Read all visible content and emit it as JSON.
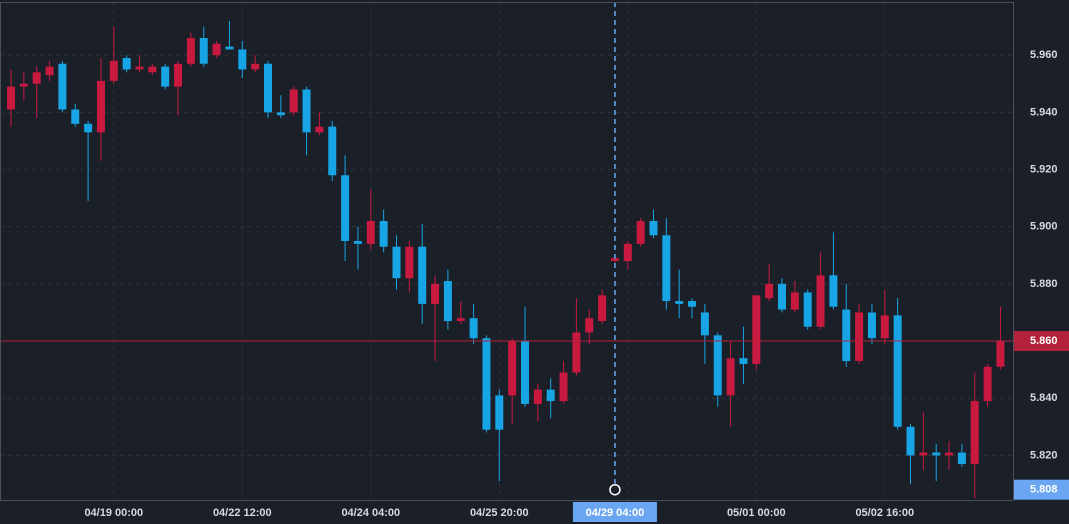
{
  "chart_data": {
    "type": "candlestick",
    "up_color": "#c8193e",
    "down_color": "#17a5e6",
    "categories": [
      null,
      null,
      null,
      null,
      null,
      null,
      null,
      null,
      "04/19 00:00",
      null,
      null,
      null,
      null,
      null,
      null,
      null,
      null,
      null,
      "04/22 12:00",
      null,
      null,
      null,
      null,
      null,
      null,
      null,
      null,
      null,
      "04/24 04:00",
      null,
      null,
      null,
      null,
      null,
      null,
      null,
      null,
      null,
      "04/25 20:00",
      null,
      null,
      null,
      null,
      null,
      null,
      null,
      null,
      "04/29 04:00",
      null,
      null,
      null,
      null,
      null,
      null,
      null,
      null,
      null,
      null,
      "05/01 00:00",
      null,
      null,
      null,
      null,
      null,
      null,
      null,
      null,
      null,
      "05/02 16:00",
      null,
      null,
      null,
      null,
      null,
      null,
      null,
      null,
      null
    ],
    "open": [
      5.941,
      5.949,
      5.95,
      5.953,
      5.957,
      5.941,
      5.936,
      5.933,
      5.951,
      5.959,
      5.955,
      5.954,
      5.956,
      5.949,
      5.957,
      5.966,
      5.96,
      5.963,
      5.962,
      5.955,
      5.957,
      5.94,
      5.94,
      5.948,
      5.933,
      5.935,
      5.918,
      5.895,
      5.894,
      5.902,
      5.893,
      5.882,
      5.893,
      5.873,
      5.881,
      5.867,
      5.868,
      5.861,
      5.841,
      5.841,
      5.86,
      5.838,
      5.843,
      5.839,
      5.849,
      5.863,
      5.867,
      5.888,
      5.888,
      5.894,
      5.902,
      5.897,
      5.874,
      5.874,
      5.87,
      5.862,
      5.841,
      5.854,
      5.852,
      5.875,
      5.88,
      5.871,
      5.877,
      5.865,
      5.883,
      5.871,
      5.853,
      5.87,
      5.861,
      5.869,
      5.83,
      5.82,
      5.821,
      5.82,
      5.821,
      5.817,
      5.839,
      5.851
    ],
    "high": [
      5.955,
      5.954,
      5.956,
      5.958,
      5.958,
      5.943,
      5.937,
      5.959,
      5.97,
      5.96,
      5.96,
      5.957,
      5.957,
      5.958,
      5.968,
      5.97,
      5.965,
      5.972,
      5.965,
      5.96,
      5.958,
      5.946,
      5.949,
      5.949,
      5.94,
      5.937,
      5.925,
      5.9,
      5.913,
      5.906,
      5.897,
      5.895,
      5.901,
      5.883,
      5.885,
      5.874,
      5.873,
      5.862,
      5.843,
      5.861,
      5.872,
      5.845,
      5.847,
      5.853,
      5.875,
      5.871,
      5.878,
      5.89,
      5.895,
      5.903,
      5.906,
      5.903,
      5.885,
      5.875,
      5.873,
      5.863,
      5.86,
      5.865,
      5.876,
      5.887,
      5.882,
      5.881,
      5.878,
      5.891,
      5.898,
      5.88,
      5.873,
      5.873,
      5.878,
      5.875,
      5.831,
      5.835,
      5.824,
      5.825,
      5.824,
      5.849,
      5.852,
      5.872
    ],
    "low": [
      5.935,
      5.944,
      5.938,
      5.951,
      5.94,
      5.935,
      5.909,
      5.923,
      5.95,
      5.954,
      5.954,
      5.953,
      5.948,
      5.939,
      5.956,
      5.956,
      5.959,
      5.962,
      5.952,
      5.954,
      5.938,
      5.938,
      5.939,
      5.925,
      5.932,
      5.916,
      5.888,
      5.885,
      5.892,
      5.891,
      5.878,
      5.877,
      5.866,
      5.853,
      5.864,
      5.866,
      5.859,
      5.828,
      5.811,
      5.831,
      5.837,
      5.832,
      5.833,
      5.838,
      5.848,
      5.859,
      5.866,
      5.887,
      5.885,
      5.893,
      5.896,
      5.871,
      5.868,
      5.868,
      5.852,
      5.837,
      5.83,
      5.845,
      5.85,
      5.874,
      5.87,
      5.87,
      5.864,
      5.864,
      5.871,
      5.851,
      5.852,
      5.859,
      5.859,
      5.829,
      5.81,
      5.815,
      5.811,
      5.815,
      5.816,
      5.805,
      5.837,
      5.85
    ],
    "close": [
      5.949,
      5.95,
      5.954,
      5.956,
      5.941,
      5.936,
      5.933,
      5.951,
      5.958,
      5.955,
      5.956,
      5.956,
      5.949,
      5.957,
      5.966,
      5.957,
      5.964,
      5.962,
      5.955,
      5.957,
      5.94,
      5.939,
      5.948,
      5.933,
      5.935,
      5.918,
      5.895,
      5.894,
      5.902,
      5.893,
      5.882,
      5.893,
      5.873,
      5.88,
      5.867,
      5.868,
      5.861,
      5.829,
      5.829,
      5.86,
      5.838,
      5.843,
      5.839,
      5.849,
      5.863,
      5.868,
      5.876,
      5.889,
      5.894,
      5.902,
      5.897,
      5.874,
      5.873,
      5.872,
      5.862,
      5.841,
      5.854,
      5.852,
      5.876,
      5.88,
      5.871,
      5.877,
      5.865,
      5.883,
      5.872,
      5.853,
      5.87,
      5.861,
      5.869,
      5.83,
      5.82,
      5.821,
      5.82,
      5.821,
      5.817,
      5.839,
      5.851,
      5.86
    ],
    "ylim": [
      5.8044,
      5.9786
    ],
    "yticks": [
      {
        "value": 5.82,
        "label": "5.820"
      },
      {
        "value": 5.84,
        "label": "5.840"
      },
      {
        "value": 5.86,
        "label": "5.860"
      },
      {
        "value": 5.88,
        "label": "5.880"
      },
      {
        "value": 5.9,
        "label": "5.900"
      },
      {
        "value": 5.92,
        "label": "5.920"
      },
      {
        "value": 5.94,
        "label": "5.940"
      },
      {
        "value": 5.96,
        "label": "5.960"
      }
    ],
    "grid": true,
    "last_price": {
      "value": 5.86,
      "label": "5.860",
      "color": "#b3223a"
    },
    "crosshair": {
      "category": "04/29 04:00",
      "price": 5.808,
      "color": "#6aa6f2"
    }
  }
}
